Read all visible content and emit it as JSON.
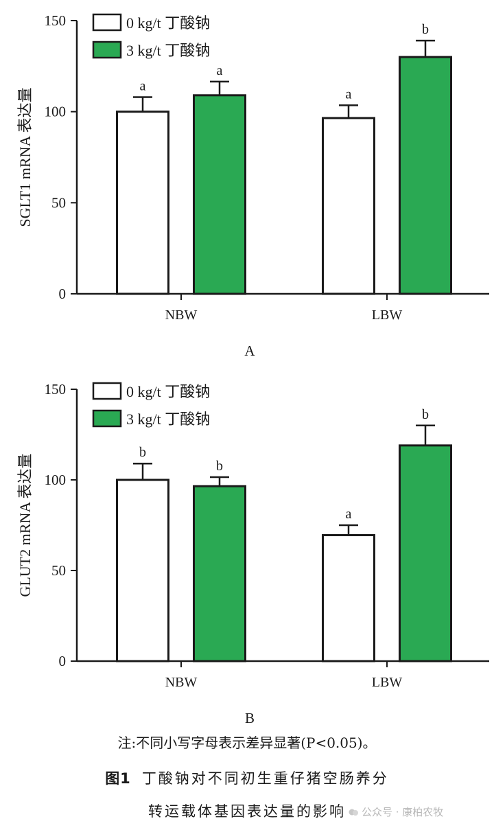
{
  "chart_data": [
    {
      "panel_label": "A",
      "type": "bar",
      "ylabel": "SGLT1 mRNA 表达量",
      "ylim": [
        0,
        150
      ],
      "yticks": [
        0,
        50,
        100,
        150
      ],
      "categories": [
        "NBW",
        "LBW"
      ],
      "series": [
        {
          "name": "0 kg/t 丁酸钠",
          "values": [
            100,
            96.5
          ],
          "errors": [
            8,
            7
          ],
          "letters": [
            "a",
            "a"
          ],
          "color": "#ffffff"
        },
        {
          "name": "3 kg/t 丁酸钠",
          "values": [
            109,
            130
          ],
          "errors": [
            7.5,
            9
          ],
          "letters": [
            "a",
            "b"
          ],
          "color": "#2aa953"
        }
      ],
      "legend": "top-left",
      "grid": false
    },
    {
      "panel_label": "B",
      "type": "bar",
      "ylabel": "GLUT2 mRNA 表达量",
      "ylim": [
        0,
        150
      ],
      "yticks": [
        0,
        50,
        100,
        150
      ],
      "categories": [
        "NBW",
        "LBW"
      ],
      "series": [
        {
          "name": "0 kg/t 丁酸钠",
          "values": [
            100,
            69.5
          ],
          "errors": [
            9,
            5.5
          ],
          "letters": [
            "b",
            "a"
          ],
          "color": "#ffffff"
        },
        {
          "name": "3 kg/t 丁酸钠",
          "values": [
            96.5,
            119
          ],
          "errors": [
            5,
            11
          ],
          "letters": [
            "b",
            "b"
          ],
          "color": "#2aa953"
        }
      ],
      "legend": "top-left",
      "grid": false
    }
  ],
  "note": "注:不同小写字母表示差异显著(P<0.05)。",
  "caption": {
    "label": "图1",
    "line1": "丁酸钠对不同初生重仔猪空肠养分",
    "line2": "转运载体基因表达量的影响"
  },
  "watermark": "公众号 · 康柏农牧"
}
